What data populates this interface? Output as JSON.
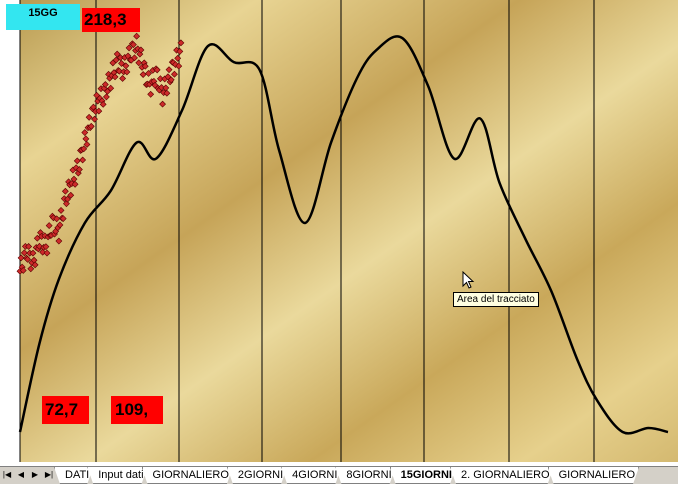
{
  "window": {
    "sheet_label": "15GG",
    "value_top": "218,3",
    "value_low_left": "72,7",
    "value_low_right": "109,",
    "tooltip": "Area del tracciato"
  },
  "colors": {
    "plot_light": "#e6d28e",
    "plot_dark": "#c4a24e",
    "label_bg": "#33e6f0",
    "value_bg": "#ff0000",
    "curve": "#000000",
    "marker": "#cc2a2a"
  },
  "chart_data": {
    "type": "line",
    "gridlines": "vertical",
    "series": [
      {
        "style": "smooth-curve",
        "x": [
          0,
          3,
          6,
          10,
          14,
          18,
          21,
          25,
          29,
          33,
          37,
          40,
          44,
          48,
          52,
          55,
          59,
          63,
          67,
          71,
          74,
          78,
          82,
          86,
          89,
          93,
          97,
          100
        ],
        "y": [
          0,
          22,
          38,
          52,
          60,
          72,
          68,
          80,
          96,
          92,
          90,
          70,
          52,
          72,
          88,
          95,
          98,
          86,
          68,
          78,
          62,
          48,
          35,
          18,
          8,
          0,
          1,
          0
        ]
      },
      {
        "style": "scatter-markers",
        "x": [
          0,
          1,
          2,
          3,
          4,
          5,
          6,
          7,
          8,
          9,
          10,
          11,
          12,
          13,
          14,
          15,
          16,
          17,
          18,
          19,
          20,
          21,
          22,
          23,
          24,
          25
        ],
        "y": [
          40,
          45,
          42,
          48,
          46,
          52,
          50,
          58,
          62,
          66,
          72,
          78,
          82,
          84,
          88,
          92,
          90,
          94,
          96,
          91,
          86,
          89,
          84,
          88,
          92,
          95
        ]
      }
    ]
  },
  "tabs": {
    "items": [
      "DATI",
      "Input dati",
      "GIORNALIERO",
      "2GIORNI",
      "4GIORNI",
      "8GIORNI",
      "15GIORNI",
      "2. GIORNALIERO",
      "GIORNALIERO"
    ],
    "active_index": 6
  }
}
